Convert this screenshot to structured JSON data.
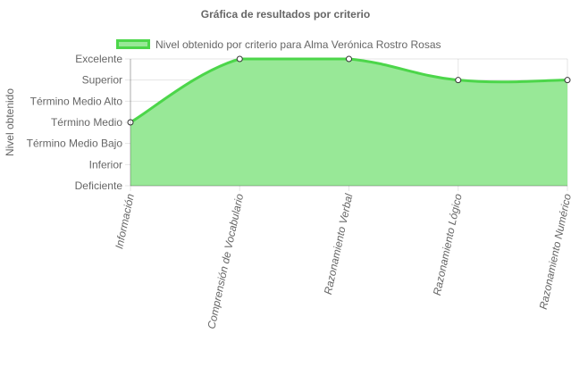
{
  "chart_data": {
    "type": "area",
    "title": "Gráfica de resultados por criterio",
    "ylabel": "Nivel obtenido",
    "xlabel": "",
    "y_levels": [
      "Deficiente",
      "Inferior",
      "Término Medio Bajo",
      "Término Medio",
      "Término Medio Alto",
      "Superior",
      "Excelente"
    ],
    "ylim": [
      0,
      6
    ],
    "categories": [
      "Información",
      "Comprensión de Vocabulario",
      "Razonamiento Verbal",
      "Razonamiento Lógico",
      "Razonamiento Numérico"
    ],
    "series": [
      {
        "name": "Nivel obtenido por criterio para Alma Verónica Rostro Rosas",
        "values": [
          3,
          6,
          6,
          5,
          5
        ],
        "fill_color": "#98e897",
        "line_color": "#4cd64a"
      }
    ],
    "grid": true,
    "legend_position": "top"
  }
}
